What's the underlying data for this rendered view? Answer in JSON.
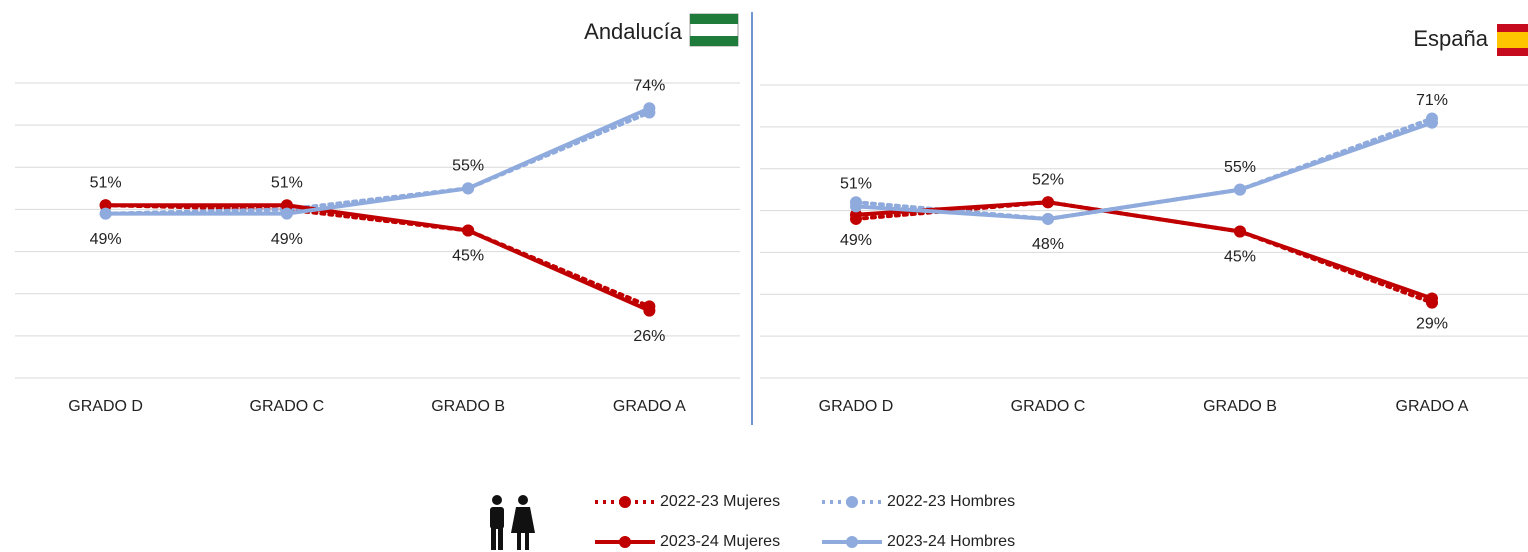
{
  "chart_data": [
    {
      "type": "line",
      "title": "Andalucía",
      "categories": [
        "GRADO D",
        "GRADO C",
        "GRADO B",
        "GRADO A"
      ],
      "ylim": [
        10,
        80
      ],
      "yticks": [
        10,
        20,
        30,
        40,
        50,
        60,
        70,
        80
      ],
      "grid": true,
      "series": [
        {
          "name": "2022-23 Mujeres",
          "color": "#c00000",
          "line_style": "dotted",
          "values": [
            51,
            50,
            45,
            27
          ]
        },
        {
          "name": "2022-23 Hombres",
          "color": "#8faadc",
          "line_style": "dotted",
          "values": [
            49,
            50,
            55,
            73
          ]
        },
        {
          "name": "2023-24 Mujeres",
          "color": "#c00000",
          "line_style": "solid",
          "values": [
            51,
            51,
            45,
            26
          ],
          "value_labels": [
            "51%",
            "51%",
            "45%",
            "26%"
          ]
        },
        {
          "name": "2023-24 Hombres",
          "color": "#8faadc",
          "line_style": "solid",
          "values": [
            49,
            49,
            55,
            74
          ],
          "value_labels": [
            "49%",
            "49%",
            "55%",
            "74%"
          ]
        }
      ]
    },
    {
      "type": "line",
      "title": "España",
      "categories": [
        "GRADO D",
        "GRADO C",
        "GRADO B",
        "GRADO A"
      ],
      "ylim": [
        10,
        80
      ],
      "yticks": [
        10,
        20,
        30,
        40,
        50,
        60,
        70,
        80
      ],
      "grid": true,
      "series": [
        {
          "name": "2022-23 Mujeres",
          "color": "#c00000",
          "line_style": "dotted",
          "values": [
            48,
            52,
            45,
            28
          ]
        },
        {
          "name": "2022-23 Hombres",
          "color": "#8faadc",
          "line_style": "dotted",
          "values": [
            52,
            48,
            55,
            72
          ]
        },
        {
          "name": "2023-24 Mujeres",
          "color": "#c00000",
          "line_style": "solid",
          "values": [
            49,
            52,
            45,
            29
          ],
          "value_labels": [
            "49%",
            "52%",
            "45%",
            "29%"
          ]
        },
        {
          "name": "2023-24 Hombres",
          "color": "#8faadc",
          "line_style": "solid",
          "values": [
            51,
            48,
            55,
            71
          ],
          "value_labels": [
            "51%",
            "48%",
            "55%",
            "71%"
          ]
        }
      ]
    }
  ]
}
